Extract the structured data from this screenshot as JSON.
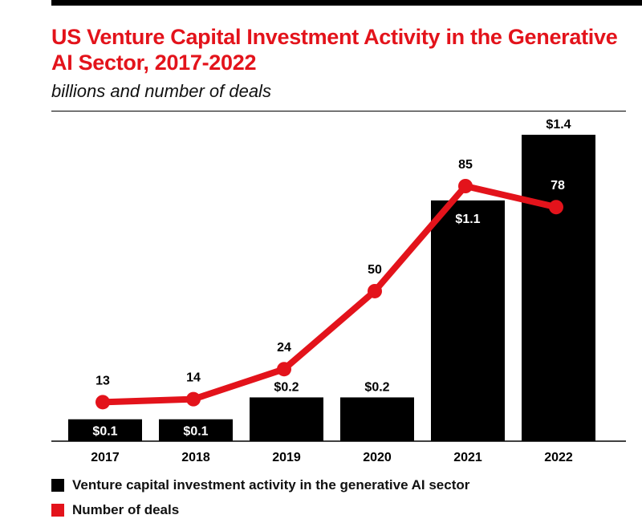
{
  "chart_data": {
    "type": "bar+line",
    "title": "US Venture Capital Investment Activity in the Generative AI Sector, 2017-2022",
    "subtitle": "billions and number of deals",
    "categories": [
      "2017",
      "2018",
      "2019",
      "2020",
      "2021",
      "2022"
    ],
    "series": [
      {
        "name": "Venture capital investment activity in the generative AI sector",
        "type": "bar",
        "unit": "billions",
        "values": [
          0.1,
          0.1,
          0.2,
          0.2,
          1.1,
          1.4
        ],
        "labels": [
          "$0.1",
          "$0.1",
          "$0.2",
          "$0.2",
          "$1.1",
          "$1.4"
        ],
        "color": "#000000"
      },
      {
        "name": "Number of deals",
        "type": "line",
        "unit": "deals",
        "values": [
          13,
          14,
          24,
          50,
          85,
          78
        ],
        "labels": [
          "13",
          "14",
          "24",
          "50",
          "85",
          "78"
        ],
        "color": "#e3131b"
      }
    ],
    "legend": [
      {
        "label": "Venture capital investment activity in the generative AI sector",
        "color": "#000000"
      },
      {
        "label": "Number of deals",
        "color": "#e3131b"
      }
    ],
    "legend_position": "bottom-left"
  }
}
